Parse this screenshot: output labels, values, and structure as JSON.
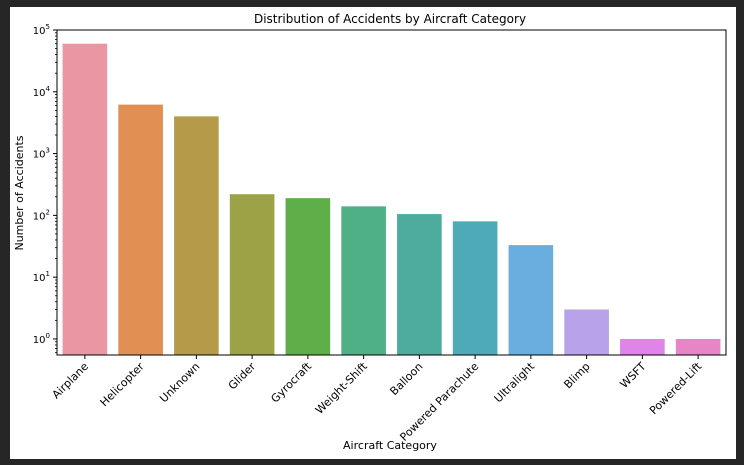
{
  "chart_data": {
    "type": "bar",
    "title": "Distribution of Accidents by Aircraft Category",
    "xlabel": "Aircraft Category",
    "ylabel": "Number of Accidents",
    "yscale": "log",
    "ylim": [
      0.55,
      100000
    ],
    "yticks": [
      {
        "value": 1,
        "base": "10",
        "exp": "0"
      },
      {
        "value": 10,
        "base": "10",
        "exp": "1"
      },
      {
        "value": 100,
        "base": "10",
        "exp": "2"
      },
      {
        "value": 1000,
        "base": "10",
        "exp": "3"
      },
      {
        "value": 10000,
        "base": "10",
        "exp": "4"
      },
      {
        "value": 100000,
        "base": "10",
        "exp": "5"
      }
    ],
    "categories": [
      "Airplane",
      "Helicopter",
      "Unknown",
      "Glider",
      "Gyrocraft",
      "Weight-Shift",
      "Balloon",
      "Powered Parachute",
      "Ultralight",
      "Blimp",
      "WSFT",
      "Powered-Lift"
    ],
    "values": [
      60000,
      6200,
      4000,
      220,
      190,
      140,
      105,
      80,
      33,
      3,
      1,
      1
    ],
    "colors": [
      "#ea96a3",
      "#e18f53",
      "#b59b49",
      "#9ca347",
      "#5eaf49",
      "#4fb086",
      "#4dac9d",
      "#4eaab6",
      "#6aaee0",
      "#b8a3ea",
      "#e184ea",
      "#e785c7"
    ],
    "grid": false,
    "legend": "none"
  }
}
